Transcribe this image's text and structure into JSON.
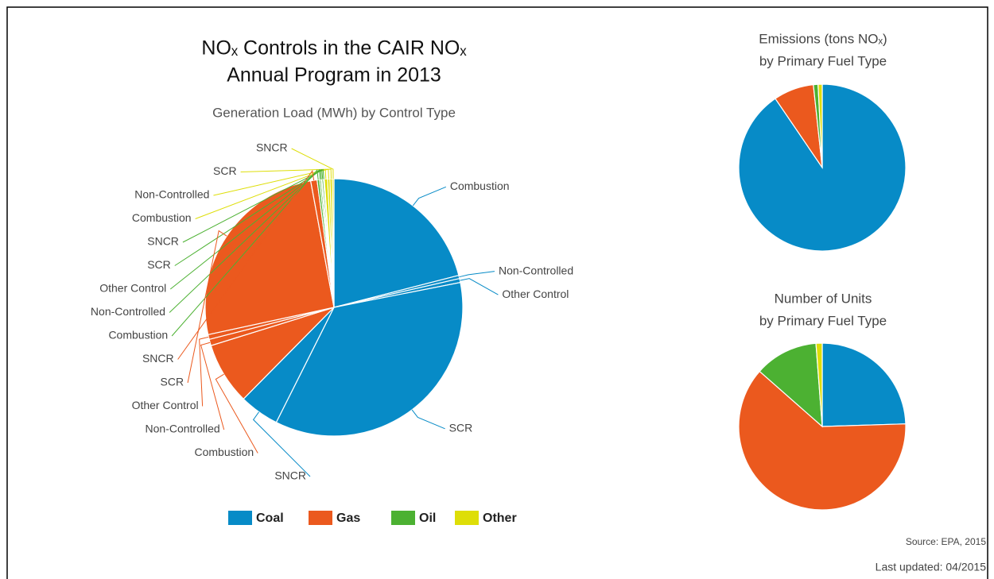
{
  "chart_data": [
    {
      "type": "pie",
      "title": [
        "NOₓ Controls in the CAIR NOₓ",
        "Annual Program in 2013"
      ],
      "subtitle": "Generation Load (MWh) by Control Type",
      "series": [
        {
          "name": "Coal",
          "color": "#078bc7",
          "categories": [
            "Combustion",
            "Non-Controlled",
            "Other Control",
            "SCR",
            "SNCR"
          ],
          "values": [
            21,
            0.4,
            0.5,
            35.5,
            5
          ]
        },
        {
          "name": "Gas",
          "color": "#eb591e",
          "categories": [
            "Combustion",
            "Non-Controlled",
            "Other Control",
            "SCR",
            "SNCR"
          ],
          "values": [
            7.8,
            0.8,
            0.6,
            25.5,
            0.8
          ]
        },
        {
          "name": "Oil",
          "color": "#4cb132",
          "categories": [
            "Combustion",
            "Non-Controlled",
            "Other Control",
            "SCR",
            "SNCR"
          ],
          "values": [
            0.3,
            0.2,
            0.1,
            0.2,
            0.1
          ]
        },
        {
          "name": "Other",
          "color": "#dede08",
          "categories": [
            "Combustion",
            "Non-Controlled",
            "SCR",
            "SNCR"
          ],
          "values": [
            0.4,
            0.3,
            0.3,
            0.2
          ]
        }
      ]
    },
    {
      "type": "pie",
      "title": [
        "Emissions (tons NOₓ)",
        "by Primary Fuel Type"
      ],
      "categories": [
        "Coal",
        "Gas",
        "Oil",
        "Other"
      ],
      "colors": [
        "#078bc7",
        "#eb591e",
        "#4cb132",
        "#dede08"
      ],
      "values": [
        90.5,
        7.8,
        0.9,
        0.8
      ]
    },
    {
      "type": "pie",
      "title": [
        "Number of Units",
        "by Primary Fuel Type"
      ],
      "categories": [
        "Coal",
        "Gas",
        "Oil",
        "Other"
      ],
      "colors": [
        "#078bc7",
        "#eb591e",
        "#4cb132",
        "#dede08"
      ],
      "values": [
        24.5,
        62,
        12.3,
        1.2
      ]
    }
  ],
  "source": "Source: EPA, 2015",
  "updated": "Last updated: 04/2015"
}
